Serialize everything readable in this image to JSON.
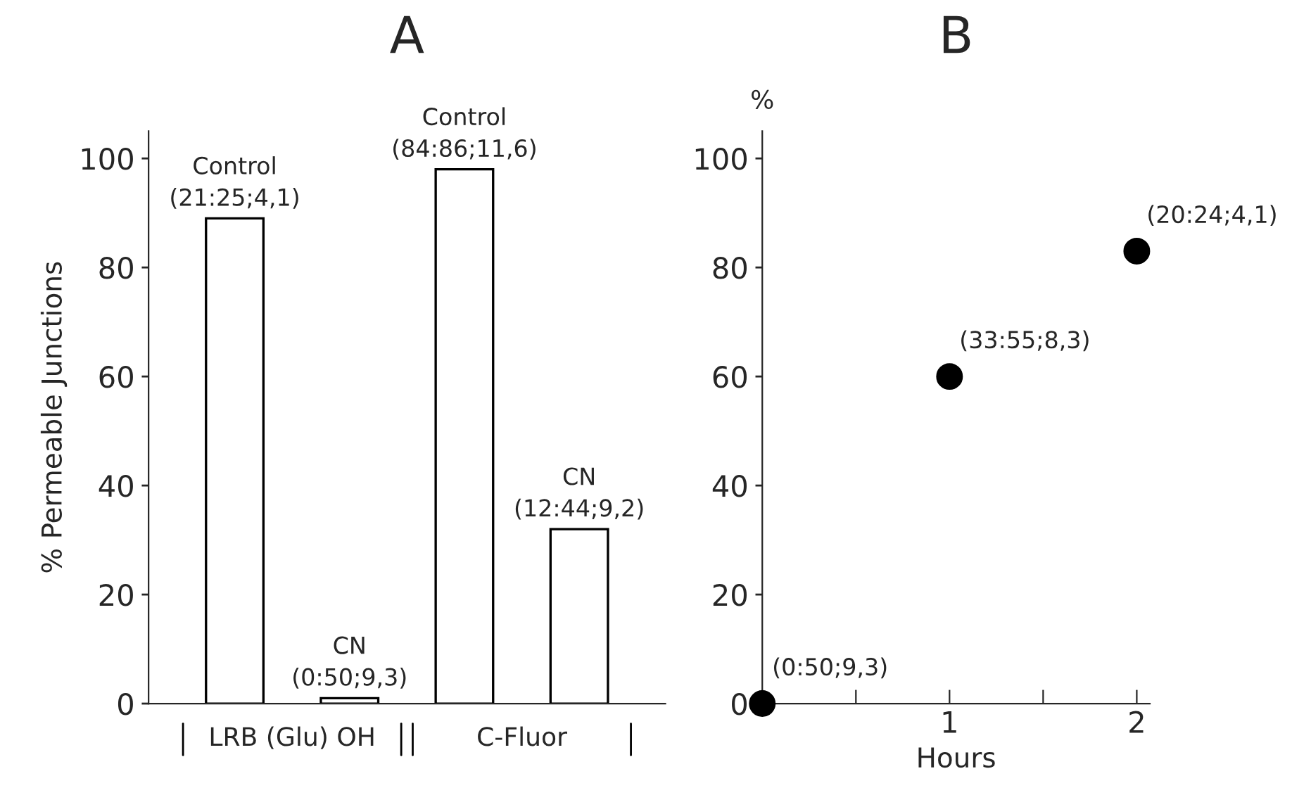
{
  "chart_data": [
    {
      "type": "bar",
      "title": "A",
      "ylabel": "% Permeable Junctions",
      "categories": [
        null,
        null,
        null,
        null
      ],
      "values": [
        89,
        1,
        98,
        32
      ],
      "color": "#ffffff",
      "value_labels": [
        "Control\n(21:25;4,1)",
        "CN\n(0:50;9,3)",
        "Control\n(84:86;11,6)",
        "CN\n(12:44;9,2)"
      ],
      "annotations": [
        "LRB (Glu) OH",
        "C-Fluor"
      ],
      "ylim": [
        0,
        105
      ],
      "yticks": [
        0,
        20,
        40,
        60,
        80,
        100
      ],
      "grid": false,
      "legend": false
    },
    {
      "type": "scatter",
      "title": "B",
      "ylabel": "%",
      "xlabel": "Hours",
      "x": [
        0,
        1,
        2
      ],
      "values": [
        0,
        60,
        83
      ],
      "color": "#000000",
      "value_labels": [
        "(0:50;9,3)",
        "(33:55;8,3)",
        "(20:24;4,1)"
      ],
      "marker": "circle",
      "xlim": [
        0,
        2.07
      ],
      "xticks": [
        {
          "value": 0,
          "label": null
        },
        {
          "value": 0.5,
          "label": null
        },
        1,
        {
          "value": 1.5,
          "label": null
        },
        2
      ],
      "ylim": [
        0,
        105
      ],
      "yticks": [
        0,
        20,
        40,
        60,
        80,
        100
      ],
      "grid": false,
      "legend": false
    }
  ]
}
